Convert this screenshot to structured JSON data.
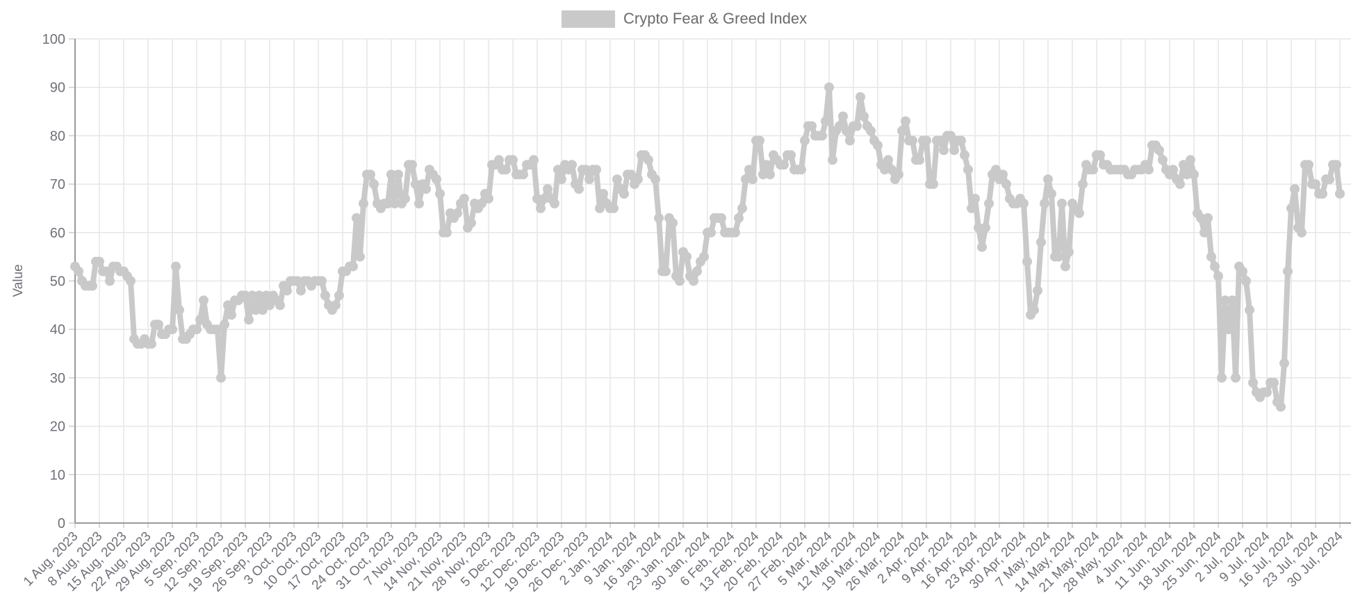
{
  "legend": {
    "label": "Crypto Fear & Greed Index"
  },
  "y_axis": {
    "title": "Value",
    "tick_labels": [
      "0",
      "10",
      "20",
      "30",
      "40",
      "50",
      "60",
      "70",
      "80",
      "90",
      "100"
    ]
  },
  "x_axis": {
    "tick_labels": [
      "1 Aug, 2023",
      "8 Aug, 2023",
      "15 Aug, 2023",
      "22 Aug, 2023",
      "29 Aug, 2023",
      "5 Sep, 2023",
      "12 Sep, 2023",
      "19 Sep, 2023",
      "26 Sep, 2023",
      "3 Oct, 2023",
      "10 Oct, 2023",
      "17 Oct, 2023",
      "24 Oct, 2023",
      "31 Oct, 2023",
      "7 Nov, 2023",
      "14 Nov, 2023",
      "21 Nov, 2023",
      "28 Nov, 2023",
      "5 Dec, 2023",
      "12 Dec, 2023",
      "19 Dec, 2023",
      "26 Dec, 2023",
      "2 Jan, 2024",
      "9 Jan, 2024",
      "16 Jan, 2024",
      "23 Jan, 2024",
      "30 Jan, 2024",
      "6 Feb, 2024",
      "13 Feb, 2024",
      "20 Feb, 2024",
      "27 Feb, 2024",
      "5 Mar, 2024",
      "12 Mar, 2024",
      "19 Mar, 2024",
      "26 Mar, 2024",
      "2 Apr, 2024",
      "9 Apr, 2024",
      "16 Apr, 2024",
      "23 Apr, 2024",
      "30 Apr, 2024",
      "7 May, 2024",
      "14 May, 2024",
      "21 May, 2024",
      "28 May, 2024",
      "4 Jun, 2024",
      "11 Jun, 2024",
      "18 Jun, 2024",
      "25 Jun, 2024",
      "2 Jul, 2024",
      "9 Jul, 2024",
      "16 Jul, 2024",
      "23 Jul, 2024",
      "30 Jul, 2024"
    ]
  },
  "chart_data": {
    "type": "line",
    "title": "Crypto Fear & Greed Index",
    "xlabel": "",
    "ylabel": "Value",
    "ylim": [
      0,
      100
    ],
    "y_ticks": [
      0,
      10,
      20,
      30,
      40,
      50,
      60,
      70,
      80,
      90,
      100
    ],
    "grid": true,
    "legend_position": "top-center",
    "x_start": "1 Aug, 2023",
    "x_end": "30 Jul, 2024",
    "x_step": "1 day",
    "x_tick_interval": "7 days",
    "marker": "circle",
    "colors": {
      "series": "#c9c9c9",
      "grid": "#e6e6e6",
      "axis": "#999999",
      "tick": "#cccccc",
      "tick_text": "#6E7079",
      "legend_text": "#6b6b6b",
      "background": "#ffffff"
    },
    "series": [
      {
        "name": "Crypto Fear & Greed Index",
        "values": [
          53,
          52,
          50,
          49,
          49,
          49,
          54,
          54,
          52,
          52,
          50,
          53,
          53,
          52,
          52,
          51,
          50,
          38,
          37,
          37,
          38,
          37,
          37,
          41,
          41,
          39,
          39,
          40,
          40,
          53,
          44,
          38,
          38,
          39,
          40,
          40,
          42,
          46,
          41,
          40,
          40,
          40,
          30,
          41,
          45,
          43,
          46,
          46,
          47,
          47,
          42,
          47,
          44,
          47,
          44,
          47,
          45,
          47,
          46,
          45,
          49,
          48,
          50,
          50,
          50,
          48,
          50,
          50,
          49,
          50,
          50,
          50,
          47,
          45,
          44,
          45,
          47,
          52,
          52,
          53,
          53,
          63,
          55,
          66,
          72,
          72,
          70,
          66,
          65,
          66,
          66,
          72,
          66,
          72,
          66,
          67,
          74,
          74,
          70,
          66,
          70,
          69,
          73,
          72,
          71,
          68,
          60,
          60,
          64,
          63,
          64,
          66,
          67,
          61,
          62,
          66,
          65,
          66,
          68,
          67,
          74,
          74,
          75,
          73,
          73,
          75,
          75,
          72,
          72,
          72,
          74,
          74,
          75,
          67,
          65,
          67,
          69,
          67,
          66,
          73,
          71,
          74,
          73,
          74,
          70,
          69,
          73,
          73,
          71,
          73,
          73,
          65,
          68,
          66,
          65,
          65,
          71,
          69,
          68,
          72,
          72,
          70,
          71,
          76,
          76,
          75,
          72,
          71,
          63,
          52,
          52,
          63,
          62,
          51,
          50,
          56,
          55,
          51,
          50,
          52,
          54,
          55,
          60,
          60,
          63,
          63,
          63,
          60,
          60,
          60,
          60,
          63,
          65,
          71,
          73,
          71,
          79,
          79,
          72,
          74,
          72,
          76,
          75,
          74,
          74,
          76,
          76,
          73,
          73,
          73,
          79,
          82,
          82,
          80,
          80,
          80,
          83,
          90,
          75,
          81,
          82,
          84,
          81,
          79,
          82,
          82,
          88,
          84,
          82,
          81,
          79,
          78,
          74,
          73,
          75,
          73,
          71,
          72,
          81,
          83,
          79,
          79,
          75,
          75,
          79,
          79,
          70,
          70,
          79,
          79,
          77,
          80,
          80,
          77,
          79,
          79,
          76,
          73,
          65,
          67,
          61,
          57,
          61,
          66,
          72,
          73,
          71,
          72,
          70,
          67,
          66,
          66,
          67,
          66,
          54,
          43,
          44,
          48,
          58,
          66,
          71,
          68,
          55,
          55,
          66,
          53,
          56,
          66,
          65,
          64,
          70,
          74,
          73,
          73,
          76,
          76,
          74,
          74,
          73,
          73,
          73,
          73,
          73,
          72,
          72,
          73,
          73,
          73,
          74,
          73,
          78,
          78,
          77,
          75,
          73,
          72,
          73,
          71,
          70,
          74,
          72,
          75,
          72,
          64,
          63,
          60,
          63,
          55,
          53,
          51,
          30,
          46,
          40,
          46,
          30,
          53,
          52,
          50,
          44,
          29,
          27,
          26,
          27,
          27,
          29,
          29,
          25,
          24,
          33,
          52,
          65,
          69,
          61,
          60,
          74,
          74,
          70,
          70,
          68,
          68,
          71,
          71,
          74,
          74,
          68
        ]
      }
    ]
  }
}
